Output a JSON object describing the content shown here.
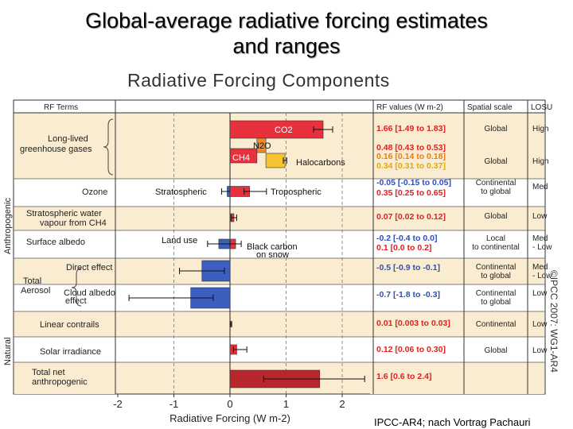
{
  "slide": {
    "title_line1": "Global-average radiative forcing estimates",
    "title_line2": "and ranges",
    "figure_title": "Radiative Forcing Components",
    "credit": "IPCC-AR4; nach Vortrag Pachauri",
    "watermark": "©IPCC 2007: WG1-AR4"
  },
  "chart_data": {
    "type": "bar",
    "orientation": "horizontal",
    "title": "Radiative Forcing Components",
    "xlabel": "Radiative Forcing (W m-2)",
    "xlim": [
      -2,
      2.5
    ],
    "xticks": [
      -2,
      -1,
      0,
      1,
      2
    ],
    "headers": {
      "terms": "RF Terms",
      "values": "RF values (W m-2)",
      "scale": "Spatial scale",
      "losu": "LOSU"
    },
    "groups": [
      {
        "label": "Anthropogenic",
        "rows": [
          0,
          9
        ]
      },
      {
        "label": "Natural",
        "rows": [
          10,
          10
        ]
      }
    ],
    "aerosol_label": "Total Aerosol",
    "rows": [
      {
        "label": "Long-lived greenhouse gases",
        "bars": [
          {
            "name": "CO2",
            "value": 1.66,
            "low": 1.49,
            "high": 1.83,
            "start": 0,
            "color": "#e8313c"
          },
          {
            "name": "CH4",
            "value": 0.48,
            "low": 0.43,
            "high": 0.53,
            "start": 0,
            "color": "#e8313c"
          },
          {
            "name": "N2O",
            "value": 0.16,
            "low": 0.14,
            "high": 0.18,
            "start": 0.48,
            "color": "#f08a2a"
          },
          {
            "name": "Halocarbons",
            "value": 0.34,
            "low": 0.31,
            "high": 0.37,
            "start": 0.64,
            "color": "#f5c430"
          }
        ],
        "values": [
          {
            "text": "1.66 [1.49 to 1.83]",
            "color": "#e02020"
          },
          {
            "text": "0.48 [0.43 to 0.53]",
            "color": "#e02020"
          },
          {
            "text": "0.16 [0.14 to 0.18]",
            "color": "#ec7a10"
          },
          {
            "text": "0.34 [0.31 to 0.37]",
            "color": "#e6a800"
          }
        ],
        "scale": "Global",
        "losu": "High"
      },
      {
        "label": "Ozone",
        "bars": [
          {
            "name": "Stratospheric",
            "value": -0.05,
            "low": -0.15,
            "high": 0.05,
            "start": 0,
            "color": "#3b5fbf"
          },
          {
            "name": "Tropospheric",
            "value": 0.35,
            "low": 0.25,
            "high": 0.65,
            "start": 0,
            "color": "#e8313c"
          }
        ],
        "values": [
          {
            "text": "-0.05 [-0.15 to 0.05]",
            "color": "#2c4fbf"
          },
          {
            "text": "0.35 [0.25 to 0.65]",
            "color": "#e02020"
          }
        ],
        "scale": "Continental to global",
        "losu": "Med"
      },
      {
        "label": "Stratospheric water vapour from CH4",
        "bars": [
          {
            "name": "",
            "value": 0.07,
            "low": 0.02,
            "high": 0.12,
            "start": 0,
            "color": "#e8313c"
          }
        ],
        "values": [
          {
            "text": "0.07 [0.02 to 0.12]",
            "color": "#e02020"
          }
        ],
        "scale": "Global",
        "losu": "Low"
      },
      {
        "label": "Surface albedo",
        "bars": [
          {
            "name": "Land use",
            "value": -0.2,
            "low": -0.4,
            "high": 0.0,
            "start": 0,
            "color": "#3b5fbf"
          },
          {
            "name": "Black carbon on snow",
            "value": 0.1,
            "low": 0.0,
            "high": 0.2,
            "start": 0,
            "color": "#e8313c"
          }
        ],
        "values": [
          {
            "text": "-0.2 [-0.4 to 0.0]",
            "color": "#2c4fbf"
          },
          {
            "text": "0.1 [0.0 to 0.2]",
            "color": "#e02020"
          }
        ],
        "scale": "Local to continental",
        "losu": "Med - Low"
      },
      {
        "label": "Direct effect",
        "bars": [
          {
            "name": "",
            "value": -0.5,
            "low": -0.9,
            "high": -0.1,
            "start": 0,
            "color": "#3b5fbf"
          }
        ],
        "values": [
          {
            "text": "-0.5 [-0.9 to -0.1]",
            "color": "#2c4fbf"
          }
        ],
        "scale": "Continental to global",
        "losu": "Med - Low"
      },
      {
        "label": "Cloud albedo effect",
        "bars": [
          {
            "name": "",
            "value": -0.7,
            "low": -1.8,
            "high": -0.3,
            "start": 0,
            "color": "#3b5fbf"
          }
        ],
        "values": [
          {
            "text": "-0.7 [-1.8 to -0.3]",
            "color": "#2c4fbf"
          }
        ],
        "scale": "Continental to global",
        "losu": "Low"
      },
      {
        "label": "Linear contrails",
        "bars": [
          {
            "name": "",
            "value": 0.01,
            "low": 0.003,
            "high": 0.03,
            "start": 0,
            "color": "#e8313c"
          }
        ],
        "values": [
          {
            "text": "0.01 [0.003 to 0.03]",
            "color": "#e02020"
          }
        ],
        "scale": "Continental",
        "losu": "Low"
      },
      {
        "label": "Solar irradiance",
        "bars": [
          {
            "name": "",
            "value": 0.12,
            "low": 0.06,
            "high": 0.3,
            "start": 0,
            "color": "#e8313c"
          }
        ],
        "values": [
          {
            "text": "0.12 [0.06 to 0.30]",
            "color": "#e02020"
          }
        ],
        "scale": "Global",
        "losu": "Low"
      },
      {
        "label": "Total net anthropogenic",
        "bars": [
          {
            "name": "",
            "value": 1.6,
            "low": 0.6,
            "high": 2.4,
            "start": 0,
            "color": "#b8272e"
          }
        ],
        "values": [
          {
            "text": "1.6 [0.6 to 2.4]",
            "color": "#e02020"
          }
        ],
        "scale": "",
        "losu": ""
      }
    ]
  }
}
